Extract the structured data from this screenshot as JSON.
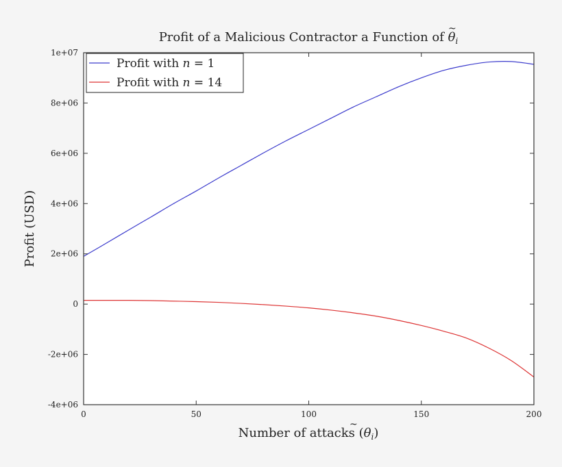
{
  "chart_data": {
    "type": "line",
    "title": "Profit of a Malicious Contractor a Function of θ̃ᵢ",
    "xlabel": "Number of attacks (θ̃ᵢ)",
    "ylabel": "Profit (USD)",
    "xlim": [
      0,
      200
    ],
    "ylim": [
      -4000000,
      10000000
    ],
    "xticks": [
      0,
      50,
      100,
      150,
      200
    ],
    "xtick_labels": [
      "0",
      "50",
      "100",
      "150",
      "200"
    ],
    "yticks": [
      -4000000,
      -2000000,
      0,
      2000000,
      4000000,
      6000000,
      8000000,
      10000000
    ],
    "ytick_labels": [
      "-4e+06",
      "-2e+06",
      "0",
      "2e+06",
      "4e+06",
      "6e+06",
      "8e+06",
      "1e+07"
    ],
    "grid": false,
    "legend_position": "upper left",
    "x": [
      0,
      10,
      20,
      30,
      40,
      50,
      60,
      70,
      80,
      90,
      100,
      110,
      120,
      130,
      140,
      150,
      160,
      170,
      180,
      190,
      200
    ],
    "series": [
      {
        "name": "Profit with n = 1",
        "color": "#3a3acc",
        "values": [
          1900000,
          2420000,
          2950000,
          3470000,
          4000000,
          4500000,
          5020000,
          5520000,
          6020000,
          6500000,
          6950000,
          7400000,
          7850000,
          8250000,
          8650000,
          9000000,
          9300000,
          9500000,
          9630000,
          9650000,
          9540000
        ]
      },
      {
        "name": "Profit with n = 14",
        "color": "#dd3333",
        "values": [
          150000,
          150000,
          150000,
          140000,
          120000,
          100000,
          70000,
          30000,
          -20000,
          -80000,
          -150000,
          -240000,
          -350000,
          -480000,
          -650000,
          -850000,
          -1080000,
          -1350000,
          -1750000,
          -2250000,
          -2900000
        ]
      }
    ]
  },
  "labels": {
    "title_main": "Profit of a Malicious Contractor a Function of ",
    "title_symbol": "θ",
    "title_sub": "i",
    "xlabel_main": "Number of attacks (",
    "xlabel_symbol": "θ",
    "xlabel_sub": "i",
    "xlabel_close": ")",
    "ylabel": "Profit (USD)",
    "legend": [
      {
        "prefix": "Profit with ",
        "var": "n",
        "eq": " = 1"
      },
      {
        "prefix": "Profit with ",
        "var": "n",
        "eq": " = 14"
      }
    ]
  }
}
